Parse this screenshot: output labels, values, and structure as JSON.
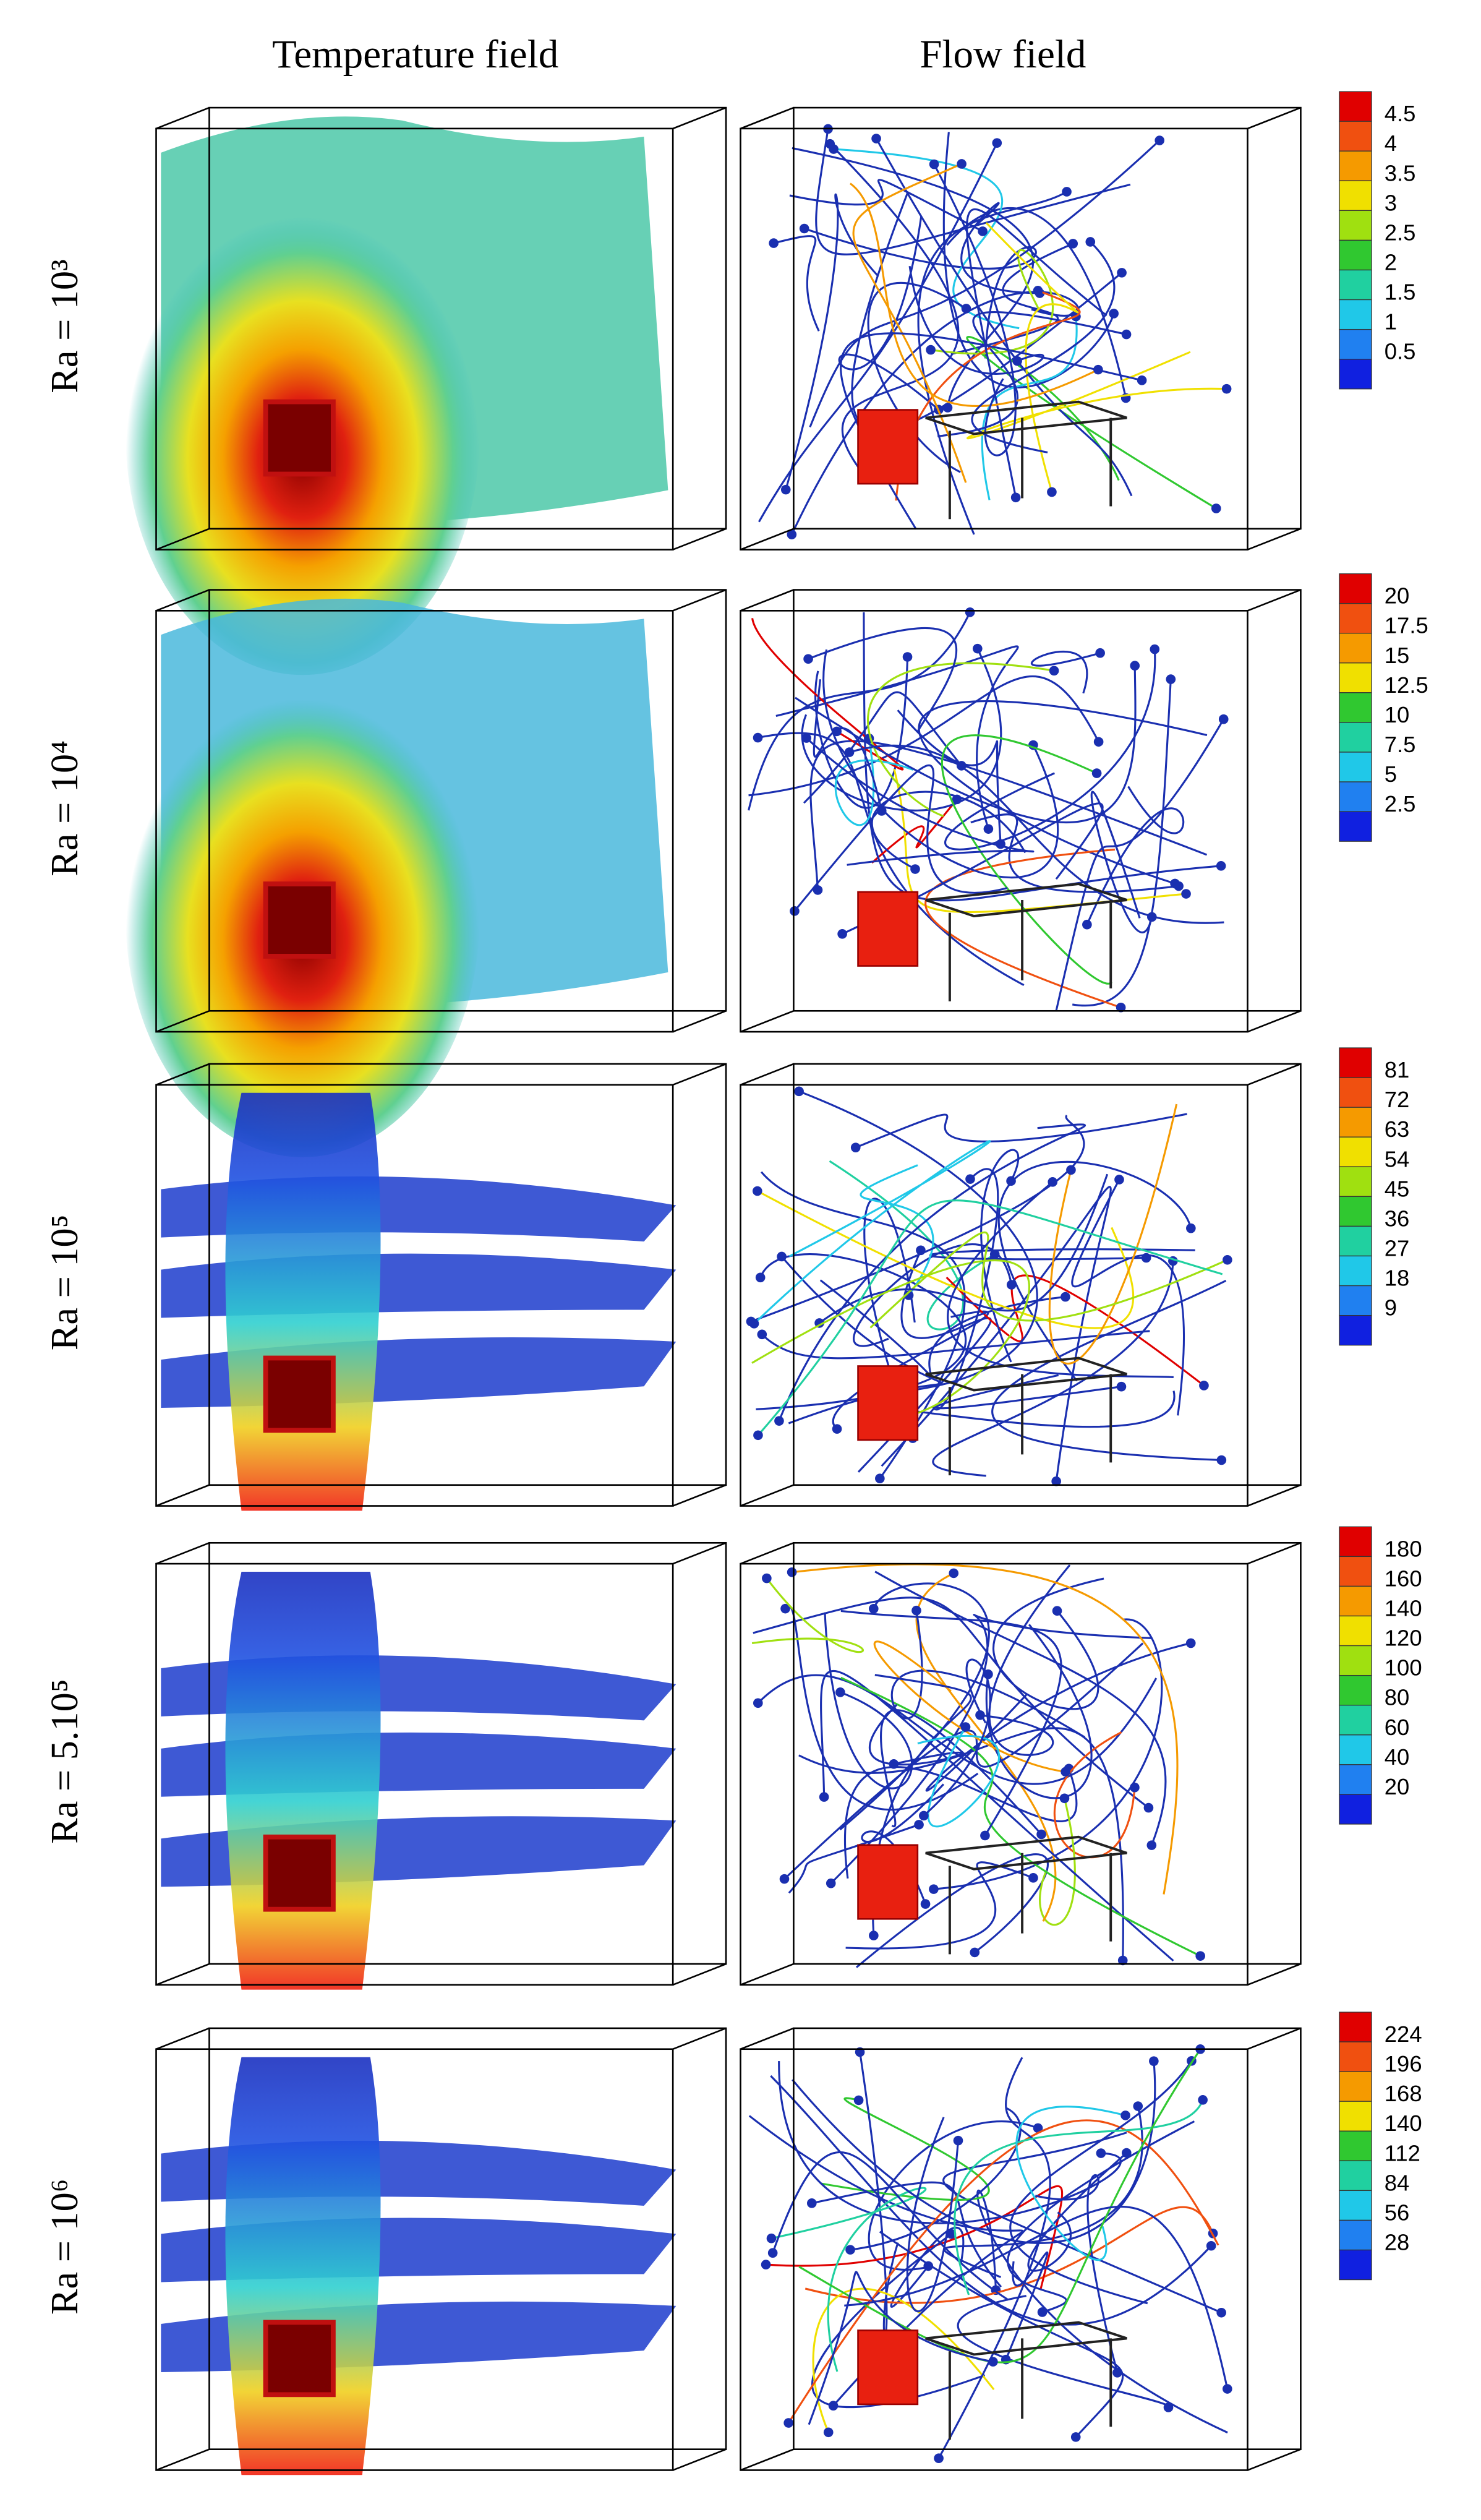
{
  "headers": [
    "Temperature field",
    "Flow field"
  ],
  "rows": [
    {
      "label": "Ra = 10³",
      "colorbar": [
        4.5,
        4,
        3.5,
        3,
        2.5,
        2,
        1.5,
        1,
        0.5
      ]
    },
    {
      "label": "Ra = 10⁴",
      "colorbar": [
        20,
        17.5,
        15,
        12.5,
        10,
        7.5,
        5,
        2.5
      ]
    },
    {
      "label": "Ra = 10⁵",
      "colorbar": [
        81,
        72,
        63,
        54,
        45,
        36,
        27,
        18,
        9
      ]
    },
    {
      "label": "Ra = 5.10⁵",
      "colorbar": [
        180,
        160,
        140,
        120,
        100,
        80,
        60,
        40,
        20
      ]
    },
    {
      "label": "Ra = 10⁶",
      "colorbar": [
        224,
        196,
        168,
        140,
        112,
        84,
        56,
        28
      ]
    }
  ]
}
